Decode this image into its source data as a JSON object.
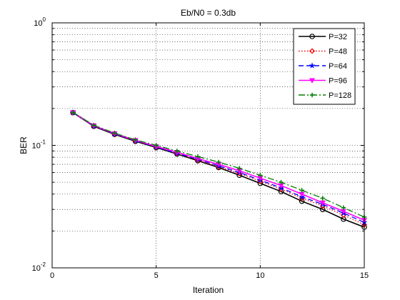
{
  "chart_data": {
    "type": "line",
    "title": "Eb/N0 = 0.3db",
    "xlabel": "Iteration",
    "ylabel": "BER",
    "xlim": [
      0,
      15
    ],
    "ylim": [
      0.01,
      1
    ],
    "yscale": "log",
    "grid": true,
    "legend_position": "top-right",
    "x_ticks": [
      "0",
      "5",
      "10",
      "15"
    ],
    "y_ticks": [
      {
        "base": "10",
        "exp": "-2",
        "value": 0.01
      },
      {
        "base": "10",
        "exp": "-1",
        "value": 0.1
      },
      {
        "base": "10",
        "exp": "0",
        "value": 1
      }
    ],
    "x": [
      1,
      2,
      3,
      4,
      5,
      6,
      7,
      8,
      9,
      10,
      11,
      12,
      13,
      14,
      15
    ],
    "series": [
      {
        "name": "P=32",
        "color": "#000000",
        "dash": "",
        "marker": "circle",
        "values": [
          0.185,
          0.143,
          0.123,
          0.108,
          0.096,
          0.085,
          0.075,
          0.066,
          0.057,
          0.049,
          0.042,
          0.035,
          0.03,
          0.025,
          0.0215
        ]
      },
      {
        "name": "P=48",
        "color": "#ff0000",
        "dash": "1.5,2.5",
        "marker": "diamond",
        "values": [
          0.185,
          0.144,
          0.124,
          0.109,
          0.097,
          0.086,
          0.076,
          0.067,
          0.059,
          0.051,
          0.044,
          0.037,
          0.032,
          0.027,
          0.0225
        ]
      },
      {
        "name": "P=64",
        "color": "#0000ff",
        "dash": "7,4",
        "marker": "star",
        "values": [
          0.185,
          0.144,
          0.124,
          0.109,
          0.097,
          0.086,
          0.077,
          0.068,
          0.06,
          0.052,
          0.045,
          0.038,
          0.033,
          0.028,
          0.0235
        ]
      },
      {
        "name": "P=96",
        "color": "#ff00ff",
        "dash": "",
        "marker": "triangle-down",
        "values": [
          0.186,
          0.145,
          0.125,
          0.11,
          0.098,
          0.088,
          0.078,
          0.07,
          0.062,
          0.054,
          0.047,
          0.04,
          0.034,
          0.029,
          0.0245
        ]
      },
      {
        "name": "P=128",
        "color": "#007f00",
        "dash": "9,3,2,3",
        "marker": "plus",
        "values": [
          0.186,
          0.146,
          0.126,
          0.111,
          0.1,
          0.09,
          0.081,
          0.073,
          0.065,
          0.057,
          0.05,
          0.043,
          0.037,
          0.031,
          0.026
        ]
      }
    ]
  }
}
